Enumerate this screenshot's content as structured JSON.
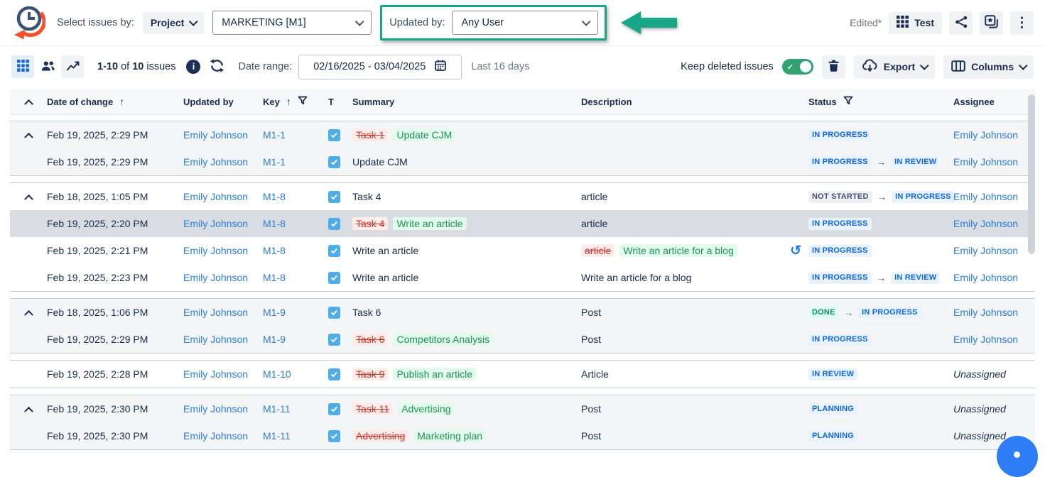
{
  "colors": {
    "highlight_teal": "#18a689",
    "link_blue": "#2b7ce0",
    "badge_blue": "#0c66e4",
    "old_red": "#c9372c",
    "new_green": "#1f9254",
    "toggle_green": "#31a370",
    "task_type_blue": "#4cade8",
    "fab_blue": "#2e7cf6",
    "accent_navy": "#1d2f55"
  },
  "icons": {
    "kebab": "⋮",
    "info": "i",
    "undo": "↺",
    "sort_up": "↑",
    "transition_arrow": "→",
    "toggle_check": "✓"
  },
  "header": {
    "select_issues_by": "Select issues by:",
    "project_button": "Project",
    "project_select": "MARKETING [M1]",
    "updated_by_label": "Updated by:",
    "updated_by_select": "Any User",
    "edited_label": "Edited*",
    "report_name": "Test"
  },
  "toolbar": {
    "count": {
      "range": "1-10",
      "of": "of",
      "total": "10",
      "unit": "issues"
    },
    "date_range_label": "Date range:",
    "date_range_value": "02/16/2025 - 03/04/2025",
    "date_range_hint": "Last 16 days",
    "keep_deleted_label": "Keep deleted issues",
    "export_label": "Export",
    "columns_label": "Columns"
  },
  "table": {
    "headers": {
      "date": "Date of change",
      "updated_by": "Updated by",
      "key": "Key",
      "type": "T",
      "summary": "Summary",
      "description": "Description",
      "status": "Status",
      "assignee": "Assignee"
    },
    "groups": [
      {
        "shaded": true,
        "rows": [
          {
            "expand": true,
            "date": "Feb 19, 2025, 2:29 PM",
            "updated_by": "Emily Johnson",
            "key": "M1-1",
            "summary": {
              "old": "Task 1",
              "new": "Update CJM"
            },
            "description": {},
            "status": [
              {
                "label": "IN PROGRESS",
                "variant": "blue"
              }
            ],
            "assignee": {
              "name": "Emily Johnson"
            }
          },
          {
            "date": "Feb 19, 2025, 2:29 PM",
            "updated_by": "Emily Johnson",
            "key": "M1-1",
            "summary": {
              "text": "Update CJM"
            },
            "description": {},
            "status": [
              {
                "label": "IN PROGRESS",
                "variant": "blue"
              },
              {
                "label": "IN REVIEW",
                "variant": "blue"
              }
            ],
            "assignee": {
              "name": "Emily Johnson"
            }
          }
        ]
      },
      {
        "shaded": false,
        "rows": [
          {
            "expand": true,
            "date": "Feb 18, 2025, 1:05 PM",
            "updated_by": "Emily Johnson",
            "key": "M1-8",
            "summary": {
              "text": "Task 4"
            },
            "description": {
              "text": "article"
            },
            "status": [
              {
                "label": "NOT STARTED",
                "variant": "gray"
              },
              {
                "label": "IN PROGRESS",
                "variant": "blue"
              }
            ],
            "assignee": {
              "name": "Emily Johnson"
            }
          },
          {
            "selected": true,
            "date": "Feb 19, 2025, 2:20 PM",
            "updated_by": "Emily Johnson",
            "key": "M1-8",
            "summary": {
              "old": "Task 4",
              "new": "Write an article"
            },
            "description": {
              "text": "article"
            },
            "status": [
              {
                "label": "IN PROGRESS",
                "variant": "blue"
              }
            ],
            "assignee": {
              "name": "Emily Johnson"
            }
          },
          {
            "date": "Feb 19, 2025, 2:21 PM",
            "updated_by": "Emily Johnson",
            "key": "M1-8",
            "summary": {
              "text": "Write an article"
            },
            "description": {
              "old": "article",
              "new": "Write an article for a blog",
              "revert": true
            },
            "status": [
              {
                "label": "IN PROGRESS",
                "variant": "blue"
              }
            ],
            "assignee": {
              "name": "Emily Johnson"
            }
          },
          {
            "date": "Feb 19, 2025, 2:23 PM",
            "updated_by": "Emily Johnson",
            "key": "M1-8",
            "summary": {
              "text": "Write an article"
            },
            "description": {
              "text": "Write an article for a blog"
            },
            "status": [
              {
                "label": "IN PROGRESS",
                "variant": "blue"
              },
              {
                "label": "IN REVIEW",
                "variant": "blue"
              }
            ],
            "assignee": {
              "name": "Emily Johnson"
            }
          }
        ]
      },
      {
        "shaded": true,
        "rows": [
          {
            "expand": true,
            "date": "Feb 18, 2025, 1:06 PM",
            "updated_by": "Emily Johnson",
            "key": "M1-9",
            "summary": {
              "text": "Task 6"
            },
            "description": {
              "text": "Post"
            },
            "status": [
              {
                "label": "DONE",
                "variant": "green"
              },
              {
                "label": "IN PROGRESS",
                "variant": "blue"
              }
            ],
            "assignee": {
              "name": "Emily Johnson"
            }
          },
          {
            "date": "Feb 19, 2025, 2:29 PM",
            "updated_by": "Emily Johnson",
            "key": "M1-9",
            "summary": {
              "old": "Task 6",
              "new": "Competitors Analysis"
            },
            "description": {
              "text": "Post"
            },
            "status": [
              {
                "label": "IN PROGRESS",
                "variant": "blue"
              }
            ],
            "assignee": {
              "name": "Emily Johnson"
            }
          }
        ]
      },
      {
        "shaded": false,
        "rows": [
          {
            "date": "Feb 19, 2025, 2:28 PM",
            "updated_by": "Emily Johnson",
            "key": "M1-10",
            "summary": {
              "old": "Task 9",
              "new": "Publish an article"
            },
            "description": {
              "text": "Article"
            },
            "status": [
              {
                "label": "IN REVIEW",
                "variant": "blue"
              }
            ],
            "assignee": {
              "name": "Unassigned",
              "unassigned": true
            }
          }
        ]
      },
      {
        "shaded": true,
        "rows": [
          {
            "expand": true,
            "date": "Feb 19, 2025, 2:30 PM",
            "updated_by": "Emily Johnson",
            "key": "M1-11",
            "summary": {
              "old": "Task 11",
              "new": "Advertising"
            },
            "description": {
              "text": "Post"
            },
            "status": [
              {
                "label": "PLANNING",
                "variant": "blue"
              }
            ],
            "assignee": {
              "name": "Unassigned",
              "unassigned": true
            }
          },
          {
            "date": "Feb 19, 2025, 2:30 PM",
            "updated_by": "Emily Johnson",
            "key": "M1-11",
            "summary": {
              "old": "Advertising",
              "new": "Marketing plan"
            },
            "description": {
              "text": "Post"
            },
            "status": [
              {
                "label": "PLANNING",
                "variant": "blue"
              }
            ],
            "assignee": {
              "name": "Unassigned",
              "unassigned": true
            }
          }
        ]
      }
    ]
  }
}
